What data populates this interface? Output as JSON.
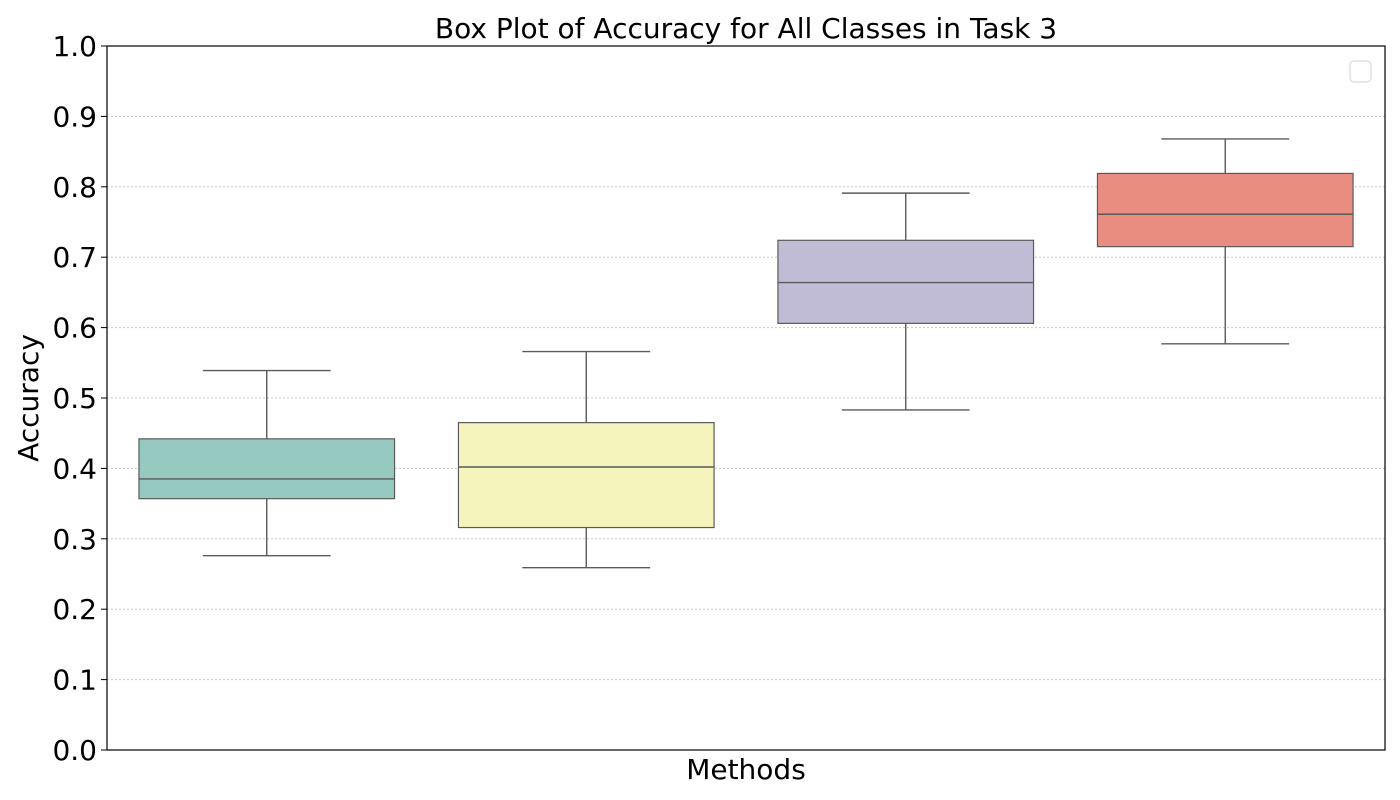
{
  "chart_data": {
    "type": "box",
    "title": "Box Plot of Accuracy for All Classes in Task 3",
    "xlabel": "Methods",
    "ylabel": "Accuracy",
    "ylim": [
      0.0,
      1.0
    ],
    "yticks": [
      "0.0",
      "0.1",
      "0.2",
      "0.3",
      "0.4",
      "0.5",
      "0.6",
      "0.7",
      "0.8",
      "0.9",
      "1.0"
    ],
    "grid": "y-dotted",
    "legend": "top-right (empty)",
    "boxes": [
      {
        "whisker_low": 0.276,
        "q1": 0.357,
        "median": 0.385,
        "q3": 0.442,
        "whisker_high": 0.539,
        "color": "#96c9c0"
      },
      {
        "whisker_low": 0.259,
        "q1": 0.316,
        "median": 0.402,
        "q3": 0.465,
        "whisker_high": 0.566,
        "color": "#f5f4bc"
      },
      {
        "whisker_low": 0.483,
        "q1": 0.606,
        "median": 0.664,
        "q3": 0.724,
        "whisker_high": 0.791,
        "color": "#c0bcd6"
      },
      {
        "whisker_low": 0.577,
        "q1": 0.715,
        "median": 0.761,
        "q3": 0.819,
        "whisker_high": 0.868,
        "color": "#ea8d81"
      }
    ]
  }
}
